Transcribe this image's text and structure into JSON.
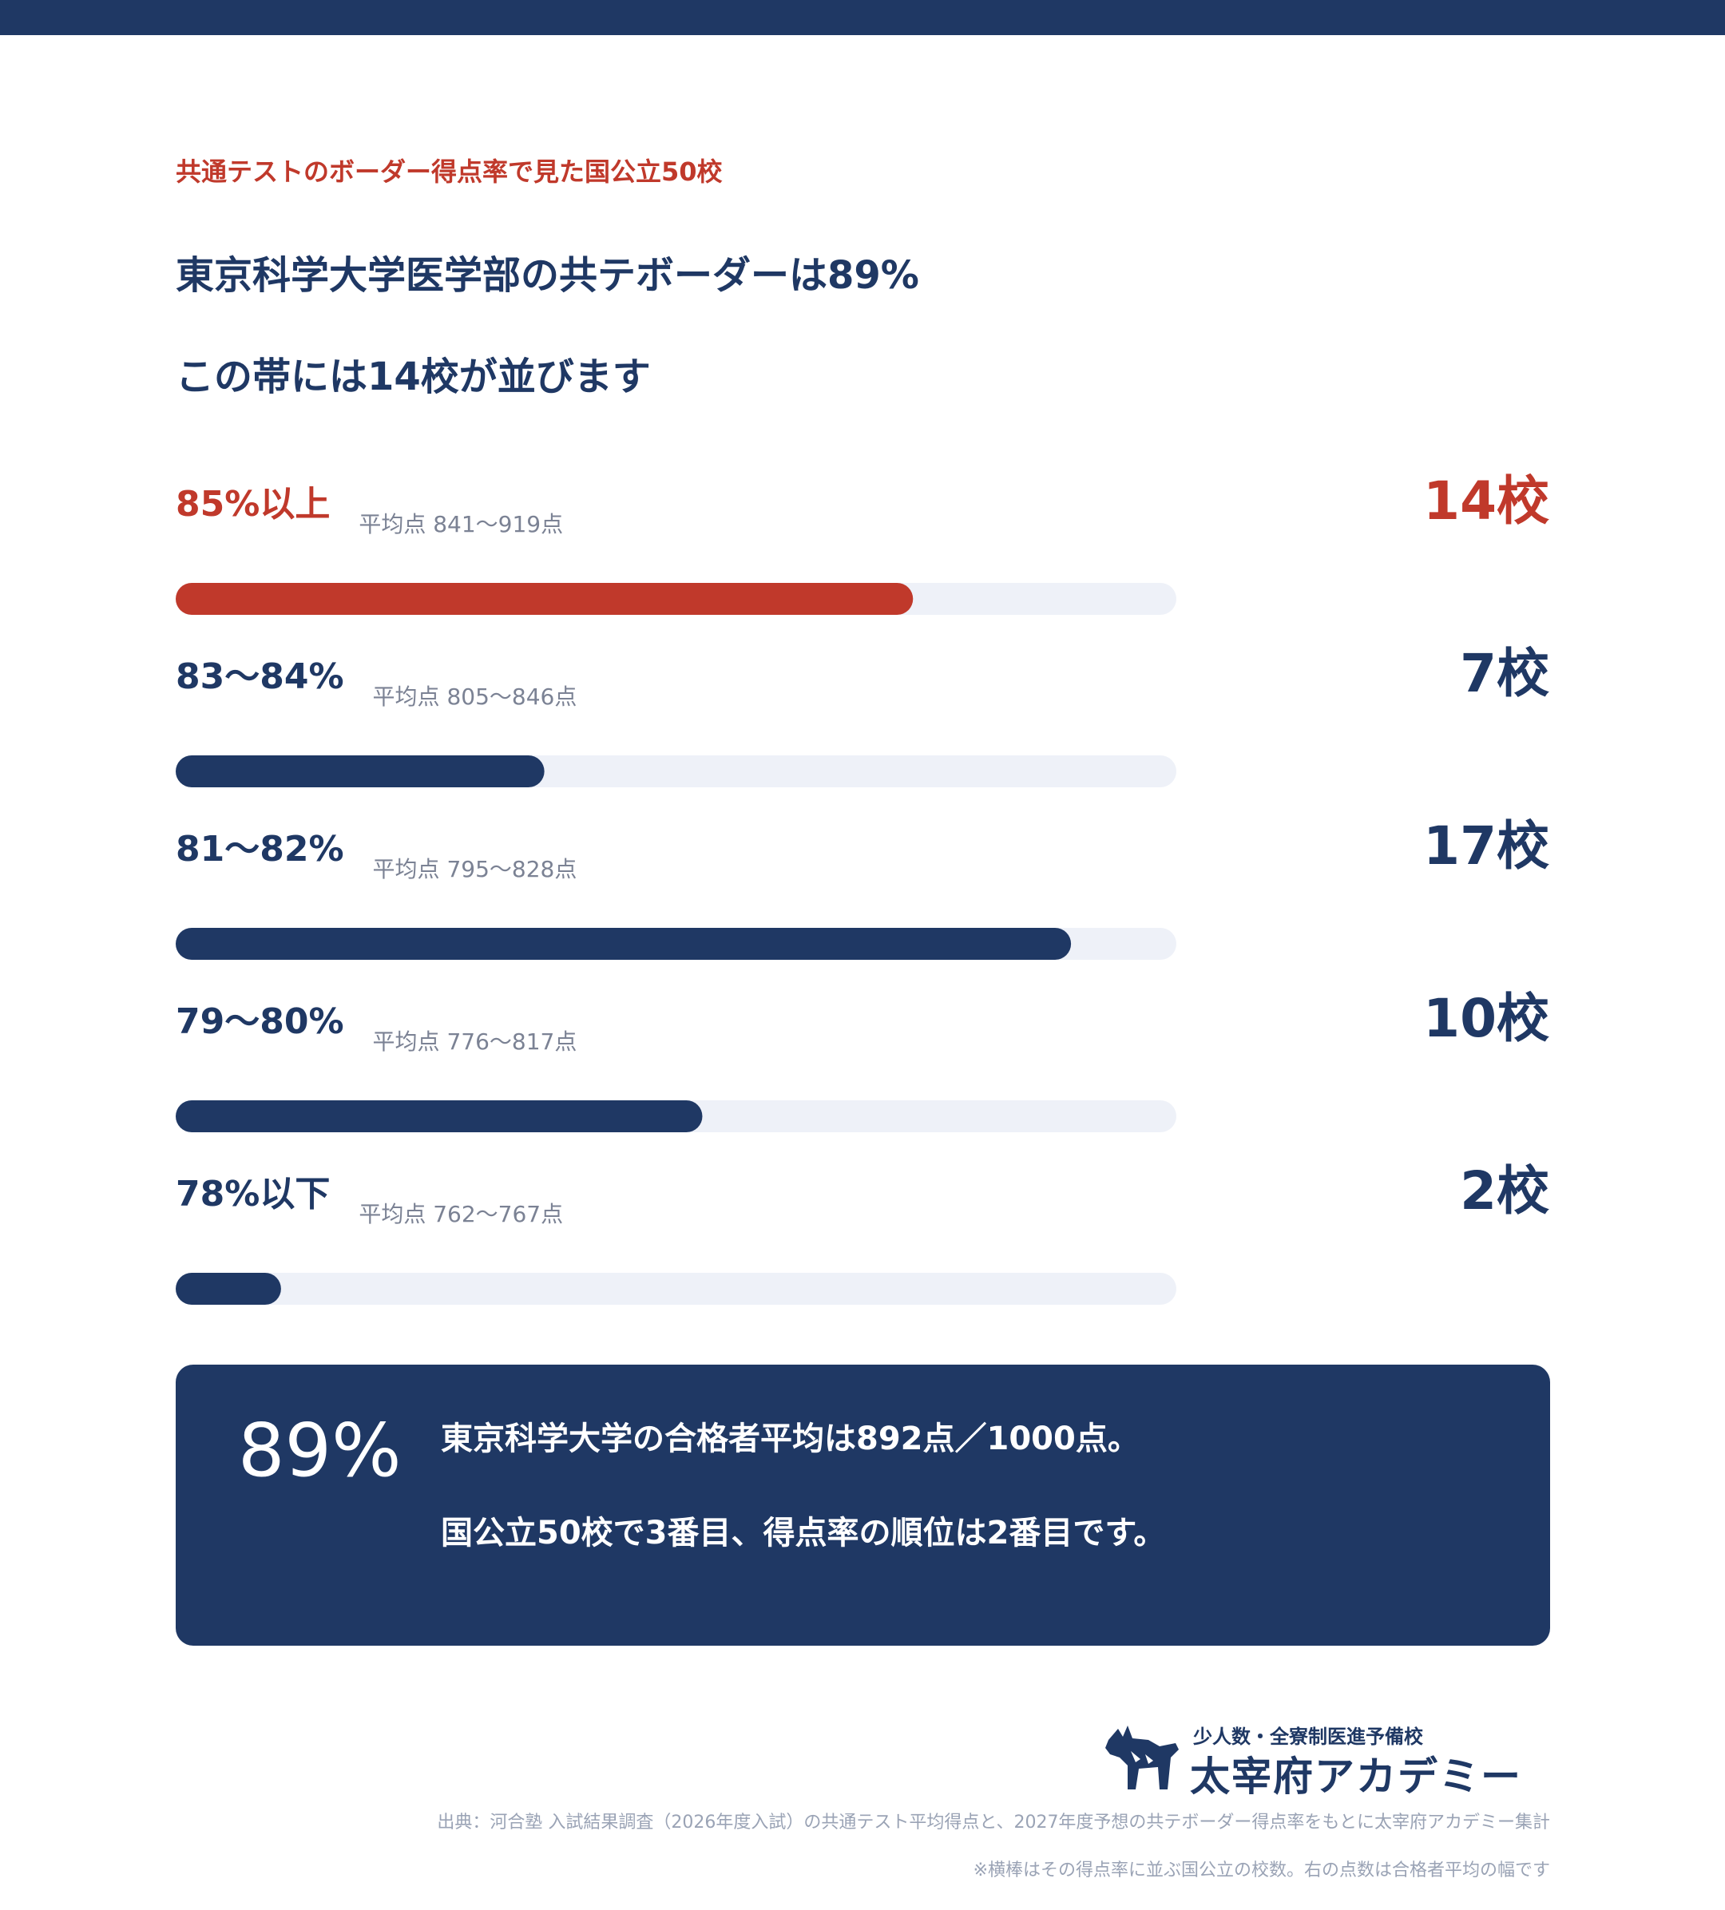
{
  "eyebrow": "共通テストのボーダー得点率で見た国公立50校",
  "headline": {
    "line1": "東京科学大学医学部の共テボーダーは89%",
    "line2": "この帯には14校が並びます"
  },
  "colors": {
    "navy": "#1f3864",
    "highlight": "#c0392b",
    "track": "#eef1f8",
    "subtle": "#7b8294"
  },
  "chart_data": {
    "type": "bar",
    "orientation": "horizontal",
    "categories": [
      "85%以上",
      "83〜84%",
      "81〜82%",
      "79〜80%",
      "78%以下"
    ],
    "sublabels": [
      "平均点 841〜919点",
      "平均点 805〜846点",
      "平均点 795〜828点",
      "平均点 776〜817点",
      "平均点 762〜767点"
    ],
    "values": [
      14,
      7,
      17,
      10,
      2
    ],
    "value_labels": [
      "14校",
      "7校",
      "17校",
      "10校",
      "2校"
    ],
    "highlight_index": 0,
    "xlim": [
      0,
      19
    ],
    "grid": false
  },
  "callout": {
    "big": "89%",
    "line1": "東京科学大学の合格者平均は892点／1000点。",
    "line2": "国公立50校で3番目、得点率の順位は2番目です。"
  },
  "logo": {
    "sub": "少人数・全寮制医進予備校",
    "name": "太宰府アカデミー"
  },
  "footer": {
    "source": "出典：河合塾 入試結果調査（2026年度入試）の共通テスト平均得点と、2027年度予想の共テボーダー得点率をもとに太宰府アカデミー集計",
    "note": "※横棒はその得点率に並ぶ国公立の校数。右の点数は合格者平均の幅です"
  }
}
